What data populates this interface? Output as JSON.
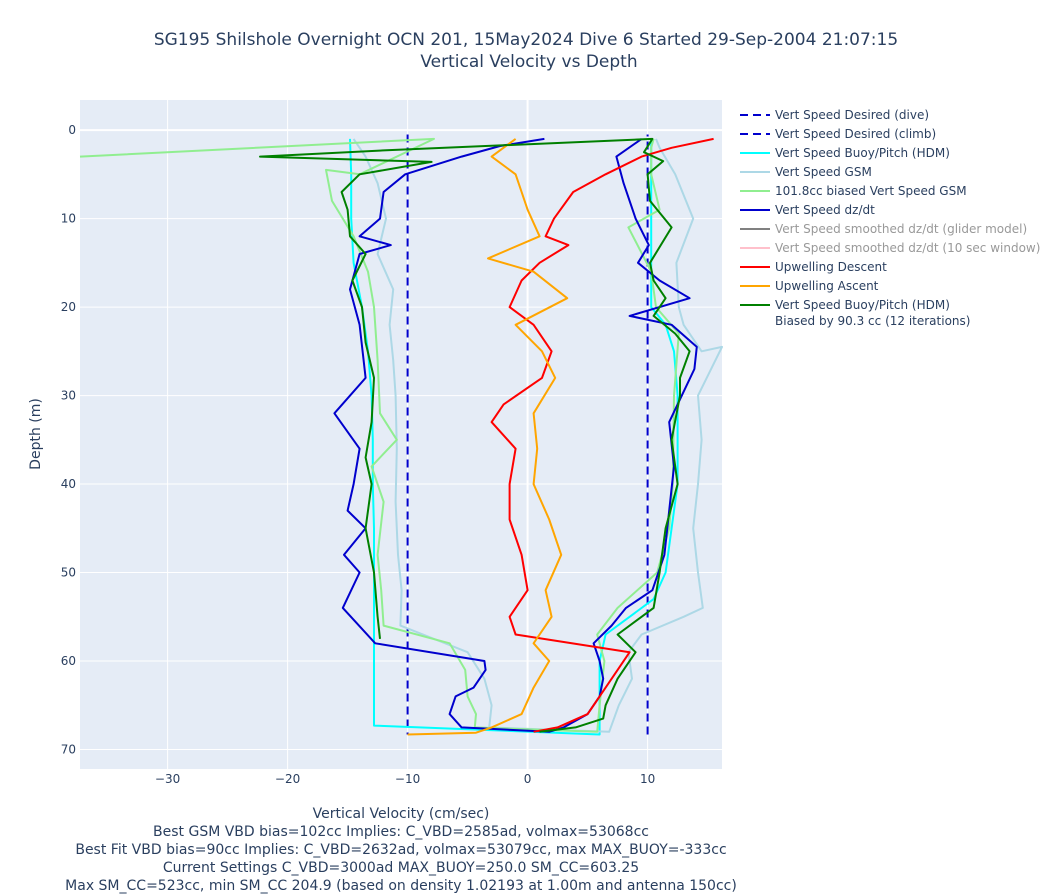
{
  "chart_data": {
    "type": "line",
    "title": "SG195 Shilshole Overnight OCN 201, 15May2024 Dive 6 Started 29-Sep-2004 21:07:15",
    "subtitle": "Vertical Velocity vs Depth",
    "xlabel": "Vertical Velocity (cm/sec)",
    "xlabel_notes": [
      "Best GSM VBD bias=102cc Implies: C_VBD=2585ad, volmax=53068cc",
      "Best Fit VBD bias=90cc Implies: C_VBD=2632ad, volmax=53079cc, max MAX_BUOY=-333cc",
      "Current Settings C_VBD=3000ad MAX_BUOY=250.0 SM_CC=603.25",
      "Max SM_CC=523cc, min SM_CC 204.9 (based on density 1.02193 at 1.00m and antenna 150cc)"
    ],
    "ylabel": "Depth (m)",
    "xlim": [
      -37.3,
      16.2
    ],
    "ylim": [
      72.2,
      -3.4
    ],
    "y_reversed": true,
    "x_ticks": [
      -30,
      -20,
      -10,
      0,
      10
    ],
    "x_tick_labels": [
      "−30",
      "−20",
      "−10",
      "0",
      "10"
    ],
    "y_ticks": [
      0,
      10,
      20,
      30,
      40,
      50,
      60,
      70
    ],
    "y_tick_labels": [
      "0",
      "10",
      "20",
      "30",
      "40",
      "50",
      "60",
      "70"
    ],
    "grid": true,
    "legend_position": "right",
    "series": [
      {
        "name": "Vert Speed Desired (dive)",
        "color": "#0000cd",
        "dash": "dash",
        "points": [
          [
            -10,
            0.5
          ],
          [
            -10,
            68.3
          ]
        ]
      },
      {
        "name": "Vert Speed Desired (climb)",
        "color": "#0000cd",
        "dash": "dash",
        "points": [
          [
            10,
            68.3
          ],
          [
            10,
            0.5
          ]
        ]
      },
      {
        "name": "Vert Speed Buoy/Pitch (HDM)",
        "color": "#00ffff",
        "points": [
          [
            -14.8,
            1
          ],
          [
            -14.7,
            5
          ],
          [
            -14.7,
            10
          ],
          [
            -14.5,
            15
          ],
          [
            -13.8,
            20
          ],
          [
            -13.3,
            25
          ],
          [
            -13.0,
            30
          ],
          [
            -12.9,
            35
          ],
          [
            -12.9,
            40
          ],
          [
            -12.8,
            45
          ],
          [
            -12.8,
            50
          ],
          [
            -12.8,
            55
          ],
          [
            -12.8,
            60
          ],
          [
            -12.8,
            65
          ],
          [
            -12.8,
            67.3
          ],
          [
            6.0,
            68.3
          ],
          [
            6.0,
            60
          ],
          [
            6.5,
            57
          ],
          [
            8.5,
            55
          ],
          [
            10.5,
            53
          ],
          [
            11.5,
            50
          ],
          [
            12.0,
            45
          ],
          [
            12.5,
            40
          ],
          [
            12.5,
            30
          ],
          [
            12.2,
            25
          ],
          [
            11.5,
            22
          ],
          [
            10.3,
            20
          ],
          [
            10.3,
            15
          ],
          [
            10.3,
            10
          ],
          [
            10.3,
            5
          ],
          [
            10.3,
            1
          ]
        ]
      },
      {
        "name": "Vert Speed GSM",
        "color": "#add8e6",
        "points": [
          [
            -14.5,
            1
          ],
          [
            -13.5,
            3
          ],
          [
            -12.5,
            6
          ],
          [
            -11.8,
            10
          ],
          [
            -12.5,
            14
          ],
          [
            -11.2,
            18
          ],
          [
            -11.5,
            22
          ],
          [
            -11.2,
            26
          ],
          [
            -11.0,
            30
          ],
          [
            -10.9,
            36
          ],
          [
            -11.0,
            42
          ],
          [
            -10.8,
            48
          ],
          [
            -10.5,
            52
          ],
          [
            -10.6,
            56
          ],
          [
            -5.0,
            59
          ],
          [
            -3.6,
            62
          ],
          [
            -3.0,
            65
          ],
          [
            -3.2,
            67.5
          ],
          [
            6.8,
            68
          ],
          [
            7.6,
            65
          ],
          [
            8.7,
            62
          ],
          [
            8.4,
            59
          ],
          [
            9.5,
            57
          ],
          [
            13.0,
            55
          ],
          [
            14.6,
            54
          ],
          [
            14.2,
            50
          ],
          [
            13.8,
            45
          ],
          [
            14.2,
            40
          ],
          [
            14.5,
            35
          ],
          [
            14.2,
            30
          ],
          [
            16.2,
            24.5
          ],
          [
            14.5,
            25
          ],
          [
            13.0,
            22
          ],
          [
            12.6,
            20
          ],
          [
            12.4,
            15
          ],
          [
            13.8,
            10
          ],
          [
            12.3,
            5
          ],
          [
            11.0,
            2
          ],
          [
            10.7,
            1
          ]
        ]
      },
      {
        "name": "101.8cc biased Vert Speed GSM",
        "color": "#90ee90",
        "points": [
          [
            -37.3,
            3
          ],
          [
            -7.8,
            1
          ],
          [
            -14,
            5
          ],
          [
            -16.8,
            4.5
          ],
          [
            -16.3,
            8
          ],
          [
            -14.5,
            12
          ],
          [
            -13.3,
            16
          ],
          [
            -12.8,
            20
          ],
          [
            -12.5,
            26
          ],
          [
            -12.3,
            32
          ],
          [
            -10.9,
            35
          ],
          [
            -13.0,
            38
          ],
          [
            -12.0,
            42
          ],
          [
            -12.5,
            48
          ],
          [
            -12.2,
            52
          ],
          [
            -12.0,
            56
          ],
          [
            -6.5,
            58
          ],
          [
            -5.2,
            61
          ],
          [
            -5.0,
            64
          ],
          [
            -4.3,
            66
          ],
          [
            -4.4,
            67.5
          ],
          [
            5.8,
            68
          ],
          [
            6.0,
            65
          ],
          [
            6.4,
            60
          ],
          [
            5.8,
            57
          ],
          [
            7.5,
            54
          ],
          [
            10.8,
            50
          ],
          [
            11.8,
            45
          ],
          [
            12.1,
            40
          ],
          [
            12.2,
            30
          ],
          [
            12.6,
            23
          ],
          [
            10.7,
            20
          ],
          [
            10.3,
            16
          ],
          [
            8.4,
            11
          ],
          [
            11.0,
            9
          ],
          [
            10.3,
            5
          ],
          [
            10.3,
            2
          ],
          [
            10.5,
            1
          ]
        ]
      },
      {
        "name": "Vert Speed dz/dt",
        "color": "#0000cd",
        "points": [
          [
            1.4,
            1
          ],
          [
            -2.3,
            1.8
          ],
          [
            -5.5,
            3
          ],
          [
            -10.2,
            5
          ],
          [
            -12.0,
            7
          ],
          [
            -12.3,
            10
          ],
          [
            -14.0,
            12
          ],
          [
            -11.4,
            13
          ],
          [
            -14.0,
            14
          ],
          [
            -14.8,
            18
          ],
          [
            -14.0,
            22
          ],
          [
            -13.5,
            28
          ],
          [
            -16.1,
            32
          ],
          [
            -14.0,
            36
          ],
          [
            -14.5,
            40
          ],
          [
            -15.0,
            43
          ],
          [
            -13.5,
            45
          ],
          [
            -15.3,
            48
          ],
          [
            -14.0,
            50
          ],
          [
            -15.4,
            54
          ],
          [
            -12.7,
            58
          ],
          [
            -3.6,
            60
          ],
          [
            -3.5,
            61
          ],
          [
            -4.5,
            63
          ],
          [
            -6.0,
            64
          ],
          [
            -6.5,
            66
          ],
          [
            -5.5,
            67.5
          ],
          [
            1.8,
            68
          ],
          [
            3.0,
            67.5
          ],
          [
            5.0,
            66
          ],
          [
            6.0,
            64
          ],
          [
            6.3,
            62
          ],
          [
            6.0,
            60
          ],
          [
            5.5,
            58
          ],
          [
            7.0,
            56
          ],
          [
            8.2,
            54
          ],
          [
            10.4,
            52
          ],
          [
            11.4,
            48
          ],
          [
            11.8,
            43
          ],
          [
            12.2,
            38
          ],
          [
            11.8,
            33
          ],
          [
            13.9,
            27
          ],
          [
            14.1,
            24.5
          ],
          [
            12.0,
            22
          ],
          [
            8.5,
            21
          ],
          [
            13.5,
            19
          ],
          [
            11.0,
            17
          ],
          [
            9.2,
            15
          ],
          [
            10.1,
            13
          ],
          [
            9.0,
            10
          ],
          [
            8.0,
            6
          ],
          [
            7.4,
            3
          ],
          [
            9.5,
            1
          ]
        ]
      },
      {
        "name": "Vert Speed smoothed dz/dt (glider model)",
        "color": "#808080",
        "muted": true,
        "points": []
      },
      {
        "name": "Vert Speed smoothed dz/dt (10 sec window)",
        "color": "#ffc0cb",
        "muted": true,
        "points": []
      },
      {
        "name": "Upwelling Descent",
        "color": "#ff0000",
        "points": [
          [
            15.5,
            1
          ],
          [
            12.0,
            2
          ],
          [
            9.5,
            3
          ],
          [
            6.5,
            5
          ],
          [
            3.8,
            7
          ],
          [
            2.2,
            10
          ],
          [
            1.5,
            12
          ],
          [
            3.4,
            13
          ],
          [
            1.0,
            15
          ],
          [
            -0.5,
            17
          ],
          [
            -1.5,
            20
          ],
          [
            0.5,
            22
          ],
          [
            2.0,
            25
          ],
          [
            1.2,
            28
          ],
          [
            -2.0,
            31
          ],
          [
            -3.0,
            33
          ],
          [
            -1.0,
            36
          ],
          [
            -1.5,
            40
          ],
          [
            -1.5,
            44
          ],
          [
            -0.5,
            48
          ],
          [
            0.0,
            52
          ],
          [
            -1.5,
            55
          ],
          [
            -1.0,
            57
          ],
          [
            8.5,
            59
          ],
          [
            7.5,
            61
          ],
          [
            6.0,
            64
          ],
          [
            5.0,
            66
          ],
          [
            2.5,
            67.5
          ],
          [
            0.5,
            68
          ]
        ]
      },
      {
        "name": "Upwelling Ascent",
        "color": "#ffa500",
        "points": [
          [
            -10.0,
            68.3
          ],
          [
            -4.3,
            68.1
          ],
          [
            -3.0,
            67.5
          ],
          [
            -0.5,
            66
          ],
          [
            0.5,
            63
          ],
          [
            1.8,
            60
          ],
          [
            0.5,
            58
          ],
          [
            2.0,
            55
          ],
          [
            1.5,
            52
          ],
          [
            2.8,
            48
          ],
          [
            1.8,
            44
          ],
          [
            0.5,
            40
          ],
          [
            0.8,
            36
          ],
          [
            0.5,
            32
          ],
          [
            2.3,
            28
          ],
          [
            1.2,
            25
          ],
          [
            -1.0,
            22
          ],
          [
            3.3,
            19
          ],
          [
            0.5,
            16
          ],
          [
            -3.3,
            14.5
          ],
          [
            1.0,
            12
          ],
          [
            0.0,
            9
          ],
          [
            -1.0,
            5
          ],
          [
            -3.0,
            3
          ],
          [
            -1.0,
            1
          ]
        ]
      },
      {
        "name": "Vert Speed Buoy/Pitch (HDM)",
        "name_line2": "Biased by 90.3 cc (12 iterations)",
        "color": "#008000",
        "points": [
          [
            -12.3,
            57.5
          ],
          [
            -12.5,
            55
          ],
          [
            -12.8,
            50
          ],
          [
            -13.5,
            45
          ],
          [
            -13.0,
            40
          ],
          [
            -13.5,
            37
          ],
          [
            -13.0,
            33
          ],
          [
            -12.8,
            28
          ],
          [
            -13.5,
            24
          ],
          [
            -13.8,
            20
          ],
          [
            -14.6,
            17
          ],
          [
            -13.5,
            14
          ],
          [
            -14.8,
            12
          ],
          [
            -15.0,
            9
          ],
          [
            -15.5,
            7
          ],
          [
            -14.0,
            5
          ],
          [
            -8.0,
            3.6
          ],
          [
            -22.3,
            3
          ],
          [
            -12.0,
            2.3
          ],
          [
            10.4,
            1
          ],
          [
            9.7,
            2.5
          ],
          [
            11.3,
            3.5
          ],
          [
            10.0,
            5
          ],
          [
            10.2,
            8
          ],
          [
            12.0,
            11
          ],
          [
            10.2,
            15
          ],
          [
            10.5,
            17
          ],
          [
            11.5,
            19
          ],
          [
            10.5,
            21
          ],
          [
            12.3,
            23
          ],
          [
            13.5,
            25
          ],
          [
            12.7,
            28
          ],
          [
            12.7,
            30
          ],
          [
            12.0,
            35
          ],
          [
            12.5,
            40
          ],
          [
            11.5,
            45
          ],
          [
            11.0,
            50
          ],
          [
            10.5,
            54
          ],
          [
            7.5,
            57
          ],
          [
            9.0,
            59
          ],
          [
            7.5,
            62
          ],
          [
            6.5,
            65
          ],
          [
            6.3,
            66.5
          ],
          [
            4.0,
            67.5
          ],
          [
            1.0,
            68
          ]
        ]
      }
    ]
  }
}
